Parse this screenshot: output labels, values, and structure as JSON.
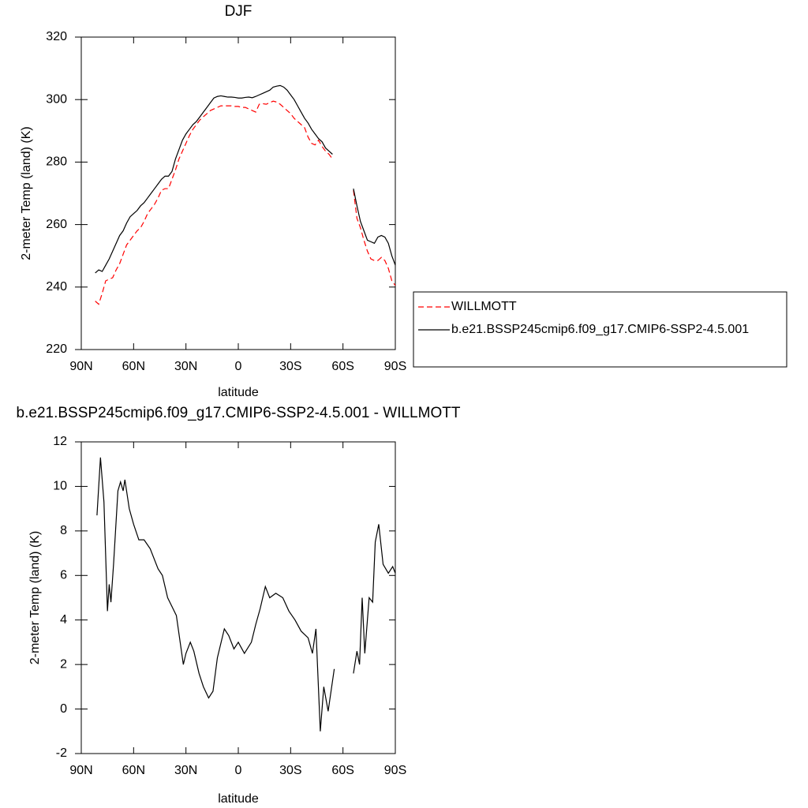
{
  "chart_data": [
    {
      "type": "line",
      "title": "DJF",
      "xlabel": "latitude",
      "ylabel": "2-meter Temp (land) (K)",
      "x": [
        84,
        82,
        80,
        78,
        76,
        74,
        72,
        70,
        68,
        66,
        64,
        62,
        60,
        58,
        56,
        54,
        52,
        50,
        48,
        46,
        44,
        42,
        40,
        38,
        36,
        34,
        32,
        30,
        28,
        26,
        24,
        22,
        20,
        18,
        16,
        14,
        12,
        10,
        8,
        6,
        4,
        2,
        0,
        -2,
        -4,
        -6,
        -8,
        -10,
        -12,
        -14,
        -16,
        -18,
        -20,
        -22,
        -24,
        -26,
        -28,
        -30,
        -32,
        -34,
        -36,
        -38,
        -40,
        -42,
        -44,
        -46,
        -48,
        -50,
        -52,
        -54,
        -56,
        -58,
        -60,
        -62,
        -64,
        -66,
        -68,
        -70,
        -72,
        -74,
        -76,
        -78,
        -80,
        -82,
        -84,
        -86,
        -88,
        -90
      ],
      "series": [
        {
          "name": "WILLMOTT",
          "color": "#ff0000",
          "line_style": "dashed",
          "values": [
            null,
            235.5,
            234.5,
            238,
            242,
            242.5,
            243,
            245.5,
            247.5,
            250.5,
            253.5,
            255,
            256.5,
            258,
            259,
            261,
            263.5,
            265,
            266.5,
            268.5,
            271,
            271.5,
            271.5,
            274.5,
            277.5,
            281,
            283.5,
            286,
            288.5,
            290.5,
            292,
            293.5,
            294.5,
            295.5,
            296.5,
            297,
            297.5,
            298,
            298,
            298,
            298,
            297.8,
            297.8,
            297.5,
            297.5,
            297,
            296.5,
            296,
            298.5,
            298.7,
            298.5,
            299,
            299.5,
            299.2,
            298.5,
            297.5,
            296.5,
            295.5,
            294,
            293,
            292,
            291,
            288,
            286,
            285.5,
            287,
            285,
            283.5,
            282.5,
            281,
            null,
            null,
            null,
            null,
            null,
            271,
            262,
            259,
            255,
            251.5,
            249,
            248.5,
            248.5,
            249.5,
            248.5,
            246,
            242,
            240.5
          ]
        },
        {
          "name": "b.e21.BSSP245cmip6.f09_g17.CMIP6-SSP2-4.5.001",
          "color": "#000000",
          "line_style": "solid",
          "values": [
            null,
            244.5,
            245.5,
            245,
            247,
            249,
            251.5,
            254,
            256.5,
            258,
            260.5,
            262.5,
            263.5,
            264.5,
            266,
            267,
            268.5,
            270,
            271.5,
            273,
            274.5,
            275.5,
            275.5,
            277,
            281,
            284,
            287,
            289,
            290.5,
            292,
            293,
            294.5,
            296,
            297.5,
            299,
            300.5,
            301,
            301.2,
            301,
            300.8,
            300.8,
            300.7,
            300.5,
            300.5,
            300.7,
            300.8,
            300.6,
            301,
            301.5,
            302,
            302.5,
            303,
            304,
            304.3,
            304.5,
            304,
            303,
            301.5,
            300,
            298,
            296,
            294,
            292.5,
            290.5,
            289,
            287.5,
            286.5,
            284.5,
            283.5,
            282.5,
            null,
            null,
            null,
            null,
            null,
            271.5,
            266,
            261,
            258,
            255,
            254.5,
            254,
            256,
            256.5,
            256,
            254,
            250,
            247
          ]
        }
      ],
      "xlim": [
        90,
        -90
      ],
      "xticks": [
        {
          "value": 90,
          "label": "90N"
        },
        {
          "value": 60,
          "label": "60N"
        },
        {
          "value": 30,
          "label": "30N"
        },
        0,
        {
          "value": -30,
          "label": "30S"
        },
        {
          "value": -60,
          "label": "60S"
        },
        {
          "value": -90,
          "label": "90S"
        }
      ],
      "ylim": [
        220,
        320
      ],
      "yticks": [
        220,
        240,
        260,
        280,
        300,
        320
      ],
      "grid": false,
      "legend": "right"
    },
    {
      "type": "line",
      "title": "b.e21.BSSP245cmip6.f09_g17.CMIP6-SSP2-4.5.001 - WILLMOTT",
      "xlabel": "latitude",
      "ylabel": "2-meter Temp (land) (K)",
      "x": [
        81,
        79,
        77,
        75,
        74,
        73,
        71.5,
        69,
        67.5,
        66,
        65,
        62.5,
        60,
        57,
        54,
        50.5,
        46,
        43.5,
        40.5,
        38,
        35.5,
        31.5,
        30,
        27.5,
        25.5,
        22.5,
        20,
        17,
        14.5,
        12,
        8,
        5.5,
        2.5,
        0,
        -3.5,
        -7.5,
        -10,
        -12.5,
        -15.5,
        -18,
        -21.5,
        -25.5,
        -29,
        -32.5,
        -36,
        -40,
        -42.5,
        -44.5,
        -47,
        -49,
        -51.5,
        -55,
        -60,
        -66,
        -68,
        -69.5,
        -71,
        -72.5,
        -75,
        -77,
        -78.5,
        -80.5,
        -83,
        -86,
        -88.5,
        -90
      ],
      "values": [
        8.7,
        11.3,
        9.3,
        4.4,
        5.6,
        4.8,
        6.5,
        9.8,
        10.2,
        9.8,
        10.3,
        9,
        8.3,
        7.6,
        7.6,
        7.2,
        6.3,
        6,
        5,
        4.6,
        4.2,
        2,
        2.5,
        3,
        2.6,
        1.6,
        1,
        0.5,
        0.8,
        2.3,
        3.6,
        3.3,
        2.7,
        3,
        2.5,
        3,
        3.8,
        4.5,
        5.5,
        5,
        5.2,
        5,
        4.4,
        4,
        3.5,
        3.2,
        2.5,
        3.6,
        -1,
        1,
        -0.1,
        1.8,
        null,
        1.6,
        2.6,
        2,
        5,
        2.5,
        5,
        4.8,
        7.5,
        8.3,
        6.5,
        6.1,
        6.4,
        6.1
      ],
      "color": "#000000",
      "xlim": [
        90,
        -90
      ],
      "xticks": [
        {
          "value": 90,
          "label": "90N"
        },
        {
          "value": 60,
          "label": "60N"
        },
        {
          "value": 30,
          "label": "30N"
        },
        0,
        {
          "value": -30,
          "label": "30S"
        },
        {
          "value": -60,
          "label": "60S"
        },
        {
          "value": -90,
          "label": "90S"
        }
      ],
      "ylim": [
        -2,
        12
      ],
      "yticks": [
        -2,
        0,
        2,
        4,
        6,
        8,
        10,
        12
      ],
      "grid": false
    }
  ]
}
